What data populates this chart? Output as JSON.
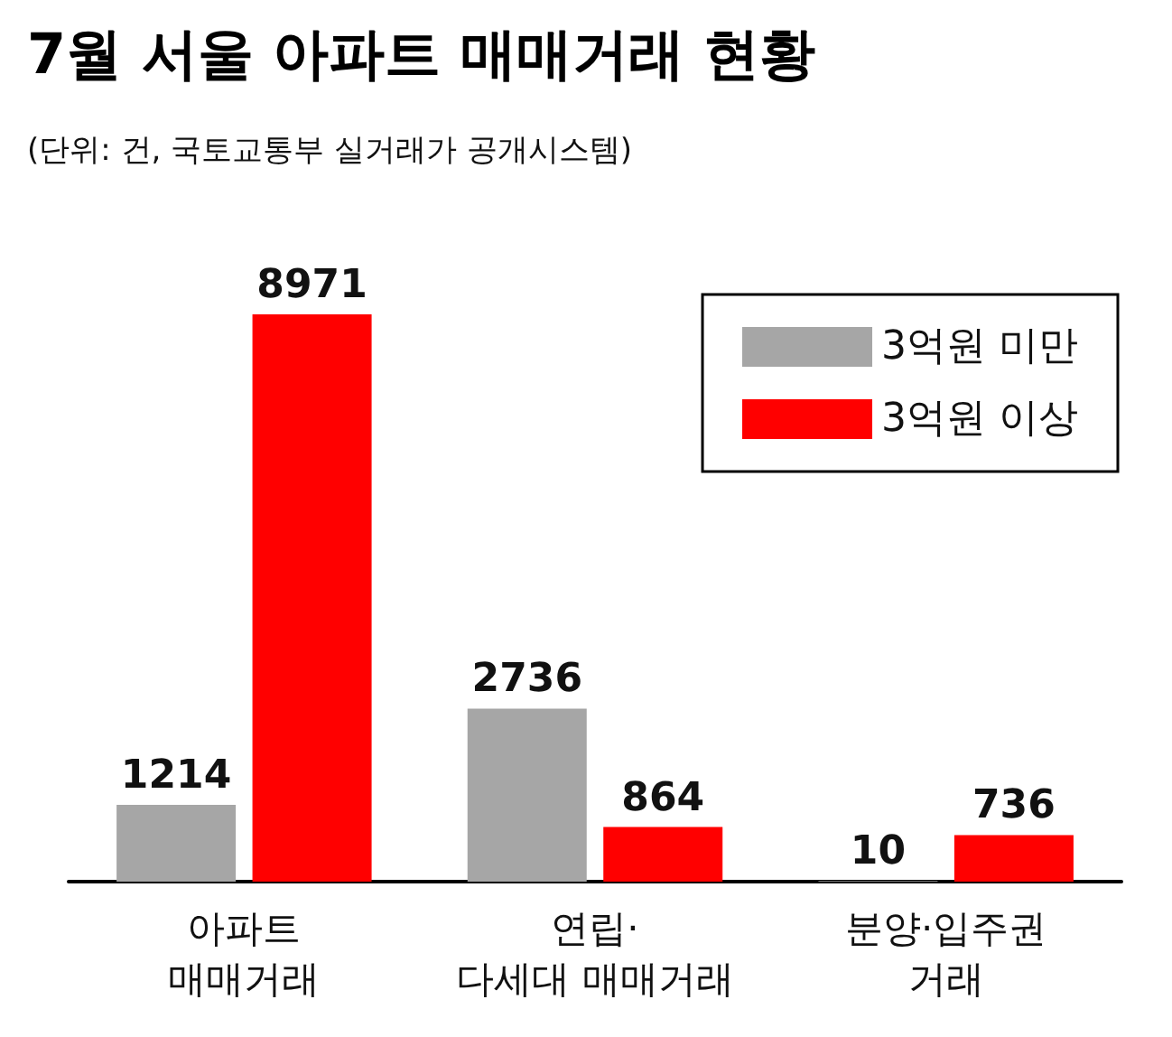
{
  "chart_data": {
    "type": "bar",
    "title": "7월 서울 아파트 매매거래 현황",
    "subtitle": "(단위: 건, 국토교통부 실거래가 공개시스템)",
    "categories": [
      "아파트\n매매거래",
      "연립·\n다세대 매매거래",
      "분양·입주권\n거래"
    ],
    "series": [
      {
        "name": "3억원 미만",
        "color": "#a6a6a6",
        "values": [
          1214,
          2736,
          10
        ]
      },
      {
        "name": "3억원 이상",
        "color": "#ff0000",
        "values": [
          8971,
          864,
          736
        ]
      }
    ],
    "data_labels": true,
    "legend": "top right"
  }
}
